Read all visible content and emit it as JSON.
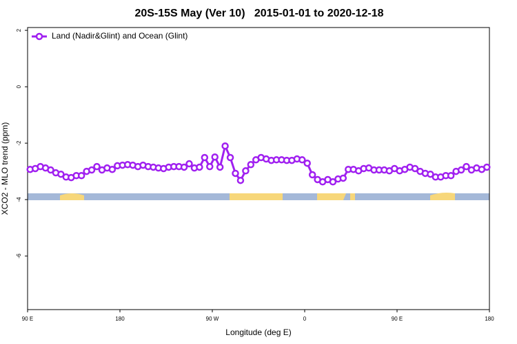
{
  "chart_data": {
    "type": "line",
    "title": "20S-15S May (Ver 10)   2015-01-01 to 2020-12-18",
    "x_label": "Longitude (deg E)",
    "y_label": "XCO2 - MLO trend (ppm)",
    "xlim": [
      90,
      540
    ],
    "ylim": [
      -7.9,
      2.1
    ],
    "xticks": [
      {
        "value": 90,
        "label": "90 E"
      },
      180,
      {
        "value": 270,
        "label": "90 W"
      },
      {
        "value": 360,
        "label": "0"
      },
      {
        "value": 450,
        "label": "90 E"
      },
      {
        "value": 540,
        "label": "180"
      }
    ],
    "yticks": [
      2,
      0,
      -2,
      -4,
      -6
    ],
    "legend_position": "top-left",
    "x": [
      92.5,
      97.5,
      102.5,
      107.5,
      112.5,
      117.5,
      122.5,
      127.5,
      132.5,
      137.5,
      142.5,
      147.5,
      152.5,
      157.5,
      162.5,
      167.5,
      172.5,
      177.5,
      182.5,
      187.5,
      192.5,
      197.5,
      202.5,
      207.5,
      212.5,
      217.5,
      222.5,
      227.5,
      232.5,
      237.5,
      242.5,
      247.5,
      252.5,
      257.5,
      262.5,
      267.5,
      272.5,
      277.5,
      282.5,
      287.5,
      292.5,
      297.5,
      302.5,
      307.5,
      312.5,
      317.5,
      322.5,
      327.5,
      332.5,
      337.5,
      342.5,
      347.5,
      352.5,
      357.5,
      362.5,
      367.5,
      372.5,
      377.5,
      382.5,
      387.5,
      392.5,
      397.5,
      402.5,
      407.5,
      412.5,
      417.5,
      422.5,
      427.5,
      432.5,
      437.5,
      442.5,
      447.5,
      452.5,
      457.5,
      462.5,
      467.5,
      472.5,
      477.5,
      482.5,
      487.5,
      492.5,
      497.5,
      502.5,
      507.5,
      512.5,
      517.5,
      522.5,
      527.5,
      532.5,
      537.5
    ],
    "series": [
      {
        "name": "Land (Nadir&Glint) and Ocean (Glint)",
        "color": "#a020f0",
        "values": [
          -2.93,
          -2.9,
          -2.83,
          -2.88,
          -2.95,
          -3.05,
          -3.1,
          -3.2,
          -3.22,
          -3.15,
          -3.15,
          -3.0,
          -2.95,
          -2.83,
          -2.95,
          -2.88,
          -2.93,
          -2.8,
          -2.78,
          -2.76,
          -2.78,
          -2.83,
          -2.78,
          -2.83,
          -2.85,
          -2.88,
          -2.9,
          -2.85,
          -2.83,
          -2.83,
          -2.85,
          -2.73,
          -2.88,
          -2.85,
          -2.51,
          -2.83,
          -2.49,
          -2.85,
          -2.1,
          -2.51,
          -3.07,
          -3.32,
          -2.98,
          -2.76,
          -2.59,
          -2.51,
          -2.56,
          -2.61,
          -2.59,
          -2.59,
          -2.61,
          -2.61,
          -2.56,
          -2.59,
          -2.71,
          -3.12,
          -3.29,
          -3.37,
          -3.29,
          -3.37,
          -3.27,
          -3.24,
          -2.93,
          -2.93,
          -2.98,
          -2.9,
          -2.88,
          -2.95,
          -2.95,
          -2.95,
          -2.98,
          -2.9,
          -2.98,
          -2.93,
          -2.85,
          -2.9,
          -3.0,
          -3.07,
          -3.1,
          -3.2,
          -3.2,
          -3.15,
          -3.15,
          -3.0,
          -2.95,
          -2.83,
          -2.95,
          -2.88,
          -2.93,
          -2.85
        ]
      }
    ]
  }
}
